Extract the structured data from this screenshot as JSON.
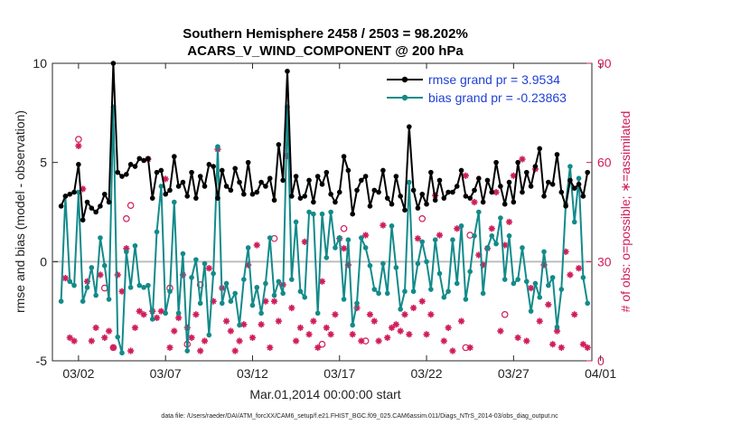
{
  "chart_data": {
    "type": "line",
    "title_line1": "Southern Hemisphere 2458 / 2503 = 98.202%",
    "title_line2": "ACARS_V_WIND_COMPONENT @ 200 hPa",
    "xlabel": "Mar.01,2014 00:00:00 start",
    "ylabel": "rmse and bias (model - observation)",
    "y2label": "# of obs: o=possible; ∗=assimilated",
    "footnote": "data file: /Users/raeder/DAI/ATM_forcXX/CAM6_setup/f.e21.FHIST_BGC.f09_025.CAM6assim.011/Diags_NTrS_2014-03/obs_diag_output.nc",
    "xlim": [
      0.5,
      31.5
    ],
    "ylim": [
      -5,
      10
    ],
    "y2lim": [
      0,
      90
    ],
    "x_ticks": [
      {
        "day": 2,
        "label": "03/02"
      },
      {
        "day": 7,
        "label": "03/07"
      },
      {
        "day": 12,
        "label": "03/12"
      },
      {
        "day": 17,
        "label": "03/17"
      },
      {
        "day": 22,
        "label": "03/22"
      },
      {
        "day": 27,
        "label": "03/27"
      },
      {
        "day": 32,
        "label": "04/01"
      }
    ],
    "y_ticks": [
      {
        "value": -5,
        "label": "-5"
      },
      {
        "value": 0,
        "label": "0"
      },
      {
        "value": 5,
        "label": "5"
      },
      {
        "value": 10,
        "label": "10"
      }
    ],
    "y2_ticks": [
      {
        "value": 0,
        "label": "0"
      },
      {
        "value": 30,
        "label": "30"
      },
      {
        "value": 60,
        "label": "60"
      },
      {
        "value": 90,
        "label": "90"
      }
    ],
    "zero_line": 0,
    "series": [
      {
        "name": "rmse",
        "legend": "rmse grand pr = 3.9534",
        "color": "#000000",
        "x": [
          1.0,
          1.25,
          1.5,
          1.75,
          2.0,
          2.25,
          2.5,
          2.75,
          3.0,
          3.25,
          3.5,
          3.75,
          4.0,
          4.25,
          4.5,
          4.75,
          5.0,
          5.25,
          5.5,
          5.75,
          6.0,
          6.25,
          6.5,
          6.75,
          7.0,
          7.25,
          7.5,
          7.75,
          8.0,
          8.25,
          8.5,
          8.75,
          9.0,
          9.25,
          9.5,
          9.75,
          10.0,
          10.25,
          10.5,
          10.75,
          11.0,
          11.25,
          11.5,
          11.75,
          12.0,
          12.25,
          12.5,
          12.75,
          13.0,
          13.25,
          13.5,
          13.75,
          14.0,
          14.25,
          14.5,
          14.75,
          15.0,
          15.25,
          15.5,
          15.75,
          16.0,
          16.25,
          16.5,
          16.75,
          17.0,
          17.25,
          17.5,
          17.75,
          18.0,
          18.25,
          18.5,
          18.75,
          19.0,
          19.25,
          19.5,
          19.75,
          20.0,
          20.25,
          20.5,
          20.75,
          21.0,
          21.25,
          21.5,
          21.75,
          22.0,
          22.25,
          22.5,
          22.75,
          23.0,
          23.25,
          23.5,
          23.75,
          24.0,
          24.25,
          24.5,
          24.75,
          25.0,
          25.25,
          25.5,
          25.75,
          26.0,
          26.25,
          26.5,
          26.75,
          27.0,
          27.25,
          27.5,
          27.75,
          28.0,
          28.25,
          28.5,
          28.75,
          29.0,
          29.25,
          29.5,
          29.75,
          30.0,
          30.25,
          30.5,
          30.75,
          31.0,
          31.25
        ],
        "values": [
          2.8,
          3.3,
          3.4,
          3.5,
          4.9,
          2.1,
          3.0,
          2.7,
          2.5,
          2.8,
          3.4,
          3.0,
          10.0,
          4.5,
          4.3,
          4.4,
          4.9,
          4.8,
          5.2,
          5.1,
          5.2,
          3.2,
          4.5,
          4.6,
          3.4,
          3.6,
          5.3,
          3.8,
          4.0,
          3.3,
          4.5,
          3.2,
          4.3,
          3.8,
          4.9,
          4.8,
          3.2,
          4.6,
          3.8,
          3.6,
          4.7,
          4.0,
          3.4,
          5.0,
          3.4,
          3.5,
          4.0,
          3.8,
          4.2,
          3.1,
          5.9,
          4.1,
          9.6,
          3.3,
          4.3,
          3.2,
          3.3,
          4.1,
          3.0,
          4.3,
          3.9,
          4.5,
          3.4,
          3.0,
          3.5,
          5.3,
          4.6,
          2.4,
          3.6,
          4.1,
          4.3,
          2.8,
          3.6,
          3.5,
          4.6,
          3.2,
          2.9,
          4.3,
          3.3,
          2.6,
          6.8,
          3.6,
          2.7,
          3.4,
          2.9,
          4.5,
          3.1,
          4.1,
          3.2,
          3.5,
          3.5,
          3.8,
          4.6,
          3.3,
          3.2,
          3.6,
          4.2,
          3.0,
          4.1,
          3.5,
          5.0,
          3.8,
          2.9,
          4.0,
          3.0,
          5.0,
          3.5,
          4.5,
          3.8,
          4.8,
          5.7,
          3.3,
          4.0,
          3.9,
          5.4,
          3.5,
          2.8,
          4.1,
          3.7,
          3.9,
          3.3,
          4.5
        ]
      },
      {
        "name": "bias",
        "legend": "bias grand pr = -0.23863",
        "color": "#138a8a",
        "x": [
          1.0,
          1.25,
          1.5,
          1.75,
          2.0,
          2.25,
          2.5,
          2.75,
          3.0,
          3.25,
          3.5,
          3.75,
          4.0,
          4.25,
          4.5,
          4.75,
          5.0,
          5.25,
          5.5,
          5.75,
          6.0,
          6.25,
          6.5,
          6.75,
          7.0,
          7.25,
          7.5,
          7.75,
          8.0,
          8.25,
          8.5,
          8.75,
          9.0,
          9.25,
          9.5,
          9.75,
          10.0,
          10.25,
          10.5,
          10.75,
          11.0,
          11.25,
          11.5,
          11.75,
          12.0,
          12.25,
          12.5,
          12.75,
          13.0,
          13.25,
          13.5,
          13.75,
          14.0,
          14.25,
          14.5,
          14.75,
          15.0,
          15.25,
          15.5,
          15.75,
          16.0,
          16.25,
          16.5,
          16.75,
          17.0,
          17.25,
          17.5,
          17.75,
          18.0,
          18.25,
          18.5,
          18.75,
          19.0,
          19.25,
          19.5,
          19.75,
          20.0,
          20.25,
          20.5,
          20.75,
          21.0,
          21.25,
          21.5,
          21.75,
          22.0,
          22.25,
          22.5,
          22.75,
          23.0,
          23.25,
          23.5,
          23.75,
          24.0,
          24.25,
          24.5,
          24.75,
          25.0,
          25.25,
          25.5,
          25.75,
          26.0,
          26.25,
          26.5,
          26.75,
          27.0,
          27.25,
          27.5,
          27.75,
          28.0,
          28.25,
          28.5,
          28.75,
          29.0,
          29.25,
          29.5,
          29.75,
          30.0,
          30.25,
          30.5,
          30.75,
          31.0,
          31.25
        ],
        "values": [
          -2.0,
          3.3,
          -1.0,
          -1.2,
          3.5,
          -2.0,
          -1.3,
          -0.3,
          -1.7,
          1.2,
          -0.2,
          -1.9,
          7.8,
          -3.8,
          -4.6,
          0.5,
          -1.3,
          0.8,
          -1.2,
          -1.3,
          -1.2,
          -2.9,
          1.5,
          3.8,
          -2.6,
          -1.5,
          3.0,
          -2.6,
          0.4,
          -4.5,
          -0.8,
          0.1,
          -2.1,
          -0.1,
          -3.7,
          -0.6,
          5.8,
          -2.1,
          -1.1,
          -2.0,
          -1.6,
          -3.2,
          -0.9,
          0.7,
          -2.2,
          -1.3,
          -2.6,
          -1.1,
          1.2,
          -1.7,
          -1.0,
          -1.6,
          7.8,
          -0.9,
          2.0,
          -1.5,
          -1.8,
          2.5,
          2.4,
          -2.6,
          2.4,
          0.2,
          2.5,
          0.7,
          1.2,
          -1.9,
          1.1,
          -3.2,
          -2.1,
          1.2,
          0.7,
          -0.2,
          -1.4,
          -1.6,
          -0.1,
          -1.6,
          1.8,
          -0.3,
          -2.4,
          -1.5,
          4.0,
          -1.5,
          -0.1,
          1.0,
          0.0,
          -1.4,
          1.1,
          -0.6,
          -1.8,
          -1.5,
          1.1,
          -1.1,
          1.8,
          -1.9,
          -0.5,
          1.3,
          2.5,
          -1.6,
          0.7,
          1.3,
          0.9,
          2.2,
          -0.9,
          1.3,
          -1.1,
          -0.9,
          0.7,
          -1.0,
          -2.5,
          -1.1,
          -1.8,
          0.5,
          -1.2,
          -0.8,
          -3.3,
          -1.4,
          2.9,
          4.8,
          2.0,
          4.2,
          -0.8,
          -2.1
        ]
      }
    ],
    "obs_assimilated": {
      "name": "# assimilated",
      "color": "#d01c5b",
      "x": [
        1.25,
        1.5,
        1.75,
        2.0,
        2.25,
        2.5,
        2.75,
        3.0,
        3.25,
        3.5,
        3.75,
        4.0,
        4.25,
        4.5,
        4.75,
        5.0,
        5.25,
        5.5,
        5.75,
        6.0,
        6.25,
        6.5,
        6.75,
        7.0,
        7.25,
        7.5,
        7.75,
        8.0,
        8.25,
        8.5,
        8.75,
        9.0,
        9.25,
        9.5,
        9.75,
        10.0,
        10.25,
        10.5,
        10.75,
        11.0,
        11.25,
        11.5,
        11.75,
        12.0,
        12.25,
        12.5,
        12.75,
        13.0,
        13.25,
        13.5,
        13.75,
        14.0,
        14.25,
        14.5,
        14.75,
        15.0,
        15.25,
        15.5,
        15.75,
        16.0,
        16.25,
        16.5,
        16.75,
        17.0,
        17.25,
        17.5,
        17.75,
        18.0,
        18.25,
        18.5,
        18.75,
        19.0,
        19.25,
        19.5,
        19.75,
        20.0,
        20.25,
        20.5,
        20.75,
        21.0,
        21.25,
        21.5,
        21.75,
        22.0,
        22.25,
        22.5,
        22.75,
        23.0,
        23.25,
        23.5,
        23.75,
        24.0,
        24.25,
        24.5,
        24.75,
        25.0,
        25.25,
        25.5,
        25.75,
        26.0,
        26.25,
        26.5,
        26.75,
        27.0,
        27.25,
        27.5,
        27.75,
        28.0,
        28.25,
        28.5,
        28.75,
        29.0,
        29.25,
        29.5,
        29.75,
        30.0,
        30.25,
        30.5,
        30.75,
        31.0,
        31.25
      ],
      "values": [
        25,
        7,
        6,
        65,
        52,
        24,
        6,
        10,
        26,
        7,
        9,
        4,
        26,
        21,
        34,
        3,
        10,
        15,
        14,
        61,
        15,
        13,
        15,
        55,
        4,
        9,
        13,
        26,
        10,
        7,
        14,
        3,
        6,
        28,
        18,
        64,
        22,
        12,
        9,
        3,
        6,
        11,
        29,
        7,
        35,
        11,
        18,
        4,
        18,
        12,
        23,
        62,
        16,
        6,
        10,
        36,
        8,
        12,
        4,
        24,
        10,
        8,
        14,
        37,
        34,
        29,
        8,
        16,
        6,
        38,
        14,
        12,
        6,
        41,
        7,
        10,
        11,
        9,
        14,
        8,
        16,
        37,
        18,
        8,
        14,
        50,
        38,
        6,
        10,
        3,
        40,
        12,
        56,
        4,
        48,
        32,
        29,
        34,
        40,
        51,
        9,
        35,
        42,
        56,
        7,
        61,
        6,
        22,
        58,
        12,
        29,
        17,
        5,
        9,
        4,
        33,
        26,
        14,
        28,
        5,
        4
      ]
    },
    "obs_possible": {
      "name": "# possible",
      "color": "#d01c5b",
      "x": [
        2.0,
        3.5,
        4.0,
        4.75,
        5.0,
        7.25,
        8.25,
        9.0,
        13.25,
        16.0,
        17.25,
        18.5,
        21.75,
        24.25,
        24.5,
        26.5
      ],
      "values": [
        67,
        22,
        4,
        43,
        47,
        22,
        5,
        23,
        37,
        5,
        40,
        6,
        43,
        4,
        38,
        14
      ]
    }
  }
}
